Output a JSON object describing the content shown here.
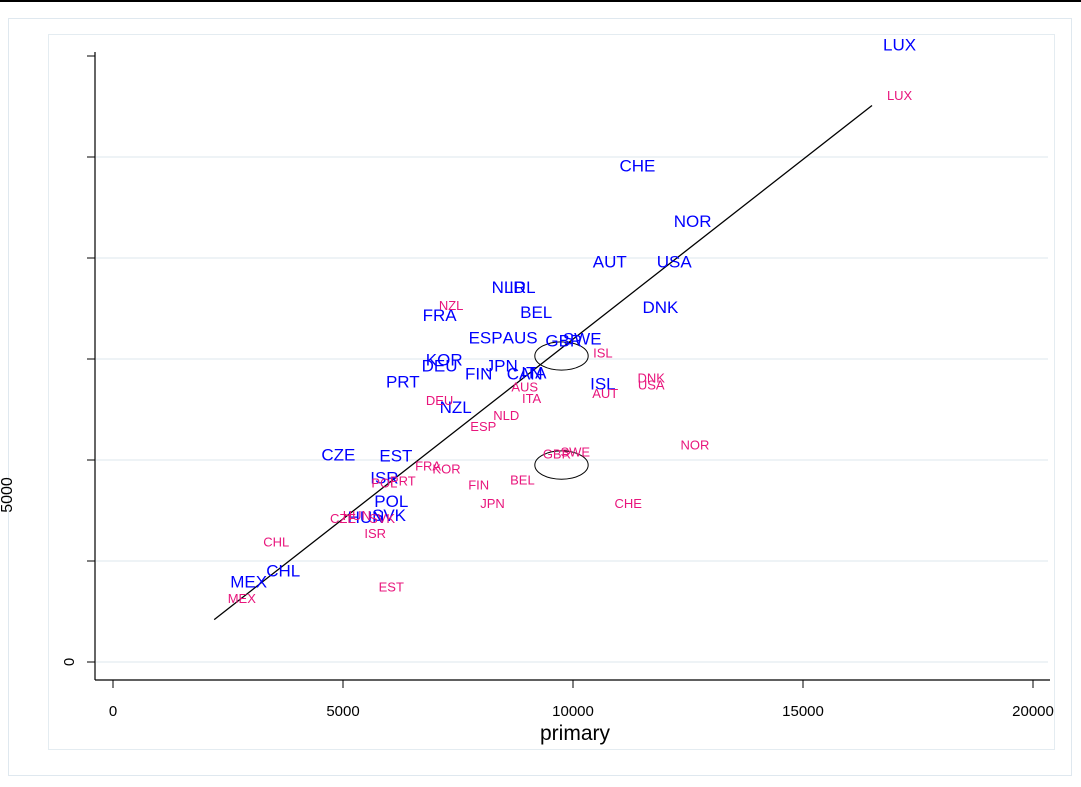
{
  "chart_data": {
    "type": "scatter",
    "xlabel": "primary",
    "ylabel": "5000",
    "x_ticks": [
      0,
      5000,
      10000,
      15000,
      20000
    ],
    "x_tick_labels": [
      "0",
      "5000",
      "10000",
      "15000",
      "20000"
    ],
    "y_tick_labels": [
      "0"
    ],
    "xlim": [
      -400,
      20300
    ],
    "ylim": [
      -0.1,
      6.4
    ],
    "grid": true,
    "colors": {
      "primary_series": "#0000ff",
      "secondary_series": "#e8157c",
      "fit_line": "#000000"
    },
    "fit_line": {
      "x": [
        2200,
        16500
      ],
      "y": [
        0.42,
        5.51
      ]
    },
    "ellipses": [
      {
        "x": 9750,
        "y": 3.03,
        "rx": 580,
        "ry": 0.14
      },
      {
        "x": 9750,
        "y": 1.95,
        "rx": 580,
        "ry": 0.14
      }
    ],
    "series": [
      {
        "style": "primary",
        "points": [
          {
            "label": "LUX",
            "x": 17100,
            "y": 6.1
          },
          {
            "label": "CHE",
            "x": 11400,
            "y": 4.9
          },
          {
            "label": "NOR",
            "x": 12600,
            "y": 4.35
          },
          {
            "label": "AUT",
            "x": 10800,
            "y": 3.95
          },
          {
            "label": "USA",
            "x": 12200,
            "y": 3.95
          },
          {
            "label": "NLD",
            "x": 8600,
            "y": 3.7
          },
          {
            "label": "IRL",
            "x": 8900,
            "y": 3.7
          },
          {
            "label": "DNK",
            "x": 11900,
            "y": 3.5
          },
          {
            "label": "BEL",
            "x": 9200,
            "y": 3.45
          },
          {
            "label": "FRA",
            "x": 7100,
            "y": 3.42
          },
          {
            "label": "ESP",
            "x": 8100,
            "y": 3.2
          },
          {
            "label": "AUS",
            "x": 8850,
            "y": 3.2
          },
          {
            "label": "GBR",
            "x": 9800,
            "y": 3.17
          },
          {
            "label": "SWE",
            "x": 10200,
            "y": 3.19
          },
          {
            "label": "KOR",
            "x": 7200,
            "y": 2.98
          },
          {
            "label": "DEU",
            "x": 7100,
            "y": 2.92
          },
          {
            "label": "JPN",
            "x": 8450,
            "y": 2.92
          },
          {
            "label": "ITA",
            "x": 9150,
            "y": 2.85
          },
          {
            "label": "FIN",
            "x": 7950,
            "y": 2.84
          },
          {
            "label": "CAN",
            "x": 8950,
            "y": 2.84
          },
          {
            "label": "PRT",
            "x": 6300,
            "y": 2.76
          },
          {
            "label": "ISL",
            "x": 10650,
            "y": 2.74
          },
          {
            "label": "NZL",
            "x": 7450,
            "y": 2.51
          },
          {
            "label": "CZE",
            "x": 4900,
            "y": 2.04
          },
          {
            "label": "EST",
            "x": 6150,
            "y": 2.03
          },
          {
            "label": "ISR",
            "x": 5900,
            "y": 1.81
          },
          {
            "label": "POL",
            "x": 6050,
            "y": 1.58
          },
          {
            "label": "HUN",
            "x": 5500,
            "y": 1.42
          },
          {
            "label": "SVK",
            "x": 6000,
            "y": 1.44
          },
          {
            "label": "CHL",
            "x": 3700,
            "y": 0.89
          },
          {
            "label": "MEX",
            "x": 2950,
            "y": 0.78
          }
        ]
      },
      {
        "style": "secondary",
        "points": [
          {
            "label": "LUX",
            "x": 17100,
            "y": 5.6
          },
          {
            "label": "NZL",
            "x": 7350,
            "y": 3.52
          },
          {
            "label": "ISL",
            "x": 10650,
            "y": 3.05
          },
          {
            "label": "DNK",
            "x": 11700,
            "y": 2.8
          },
          {
            "label": "USA",
            "x": 11700,
            "y": 2.73
          },
          {
            "label": "AUS",
            "x": 8950,
            "y": 2.71
          },
          {
            "label": "AUT",
            "x": 10700,
            "y": 2.65
          },
          {
            "label": "ITA",
            "x": 9100,
            "y": 2.6
          },
          {
            "label": "DEU",
            "x": 7100,
            "y": 2.58
          },
          {
            "label": "NLD",
            "x": 8550,
            "y": 2.43
          },
          {
            "label": "ESP",
            "x": 8050,
            "y": 2.32
          },
          {
            "label": "NOR",
            "x": 12650,
            "y": 2.14
          },
          {
            "label": "GBR",
            "x": 9650,
            "y": 2.05
          },
          {
            "label": "SWE",
            "x": 10050,
            "y": 2.07
          },
          {
            "label": "FRA",
            "x": 6850,
            "y": 1.93
          },
          {
            "label": "KOR",
            "x": 7250,
            "y": 1.9
          },
          {
            "label": "PRT",
            "x": 6300,
            "y": 1.78
          },
          {
            "label": "POL",
            "x": 5900,
            "y": 1.76
          },
          {
            "label": "BEL",
            "x": 8900,
            "y": 1.79
          },
          {
            "label": "FIN",
            "x": 7950,
            "y": 1.74
          },
          {
            "label": "JPN",
            "x": 8250,
            "y": 1.56
          },
          {
            "label": "CHE",
            "x": 11200,
            "y": 1.56
          },
          {
            "label": "HUN",
            "x": 5300,
            "y": 1.44
          },
          {
            "label": "CZE",
            "x": 5000,
            "y": 1.41
          },
          {
            "label": "SVK",
            "x": 5850,
            "y": 1.41
          },
          {
            "label": "ISR",
            "x": 5700,
            "y": 1.26
          },
          {
            "label": "CHL",
            "x": 3550,
            "y": 1.18
          },
          {
            "label": "EST",
            "x": 6050,
            "y": 0.73
          },
          {
            "label": "MEX",
            "x": 2800,
            "y": 0.62
          }
        ]
      }
    ]
  }
}
